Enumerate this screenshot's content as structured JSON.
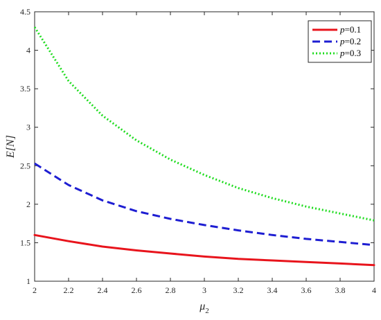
{
  "chart_data": {
    "type": "line",
    "xlabel": "μ",
    "xlabel_sub": "2",
    "ylabel": "E[N]",
    "xlim": [
      2,
      4
    ],
    "ylim": [
      1,
      4.5
    ],
    "x_ticks": [
      "2",
      "2.2",
      "2.4",
      "2.6",
      "2.8",
      "3",
      "3.2",
      "3.4",
      "3.6",
      "3.8",
      "4"
    ],
    "y_ticks": [
      "1",
      "1.5",
      "2",
      "2.5",
      "3",
      "3.5",
      "4",
      "4.5"
    ],
    "x_tick_values": [
      2,
      2.2,
      2.4,
      2.6,
      2.8,
      3,
      3.2,
      3.4,
      3.6,
      3.8,
      4
    ],
    "y_tick_values": [
      1,
      1.5,
      2,
      2.5,
      3,
      3.5,
      4,
      4.5
    ],
    "grid": false,
    "legend_position": "top-right",
    "x": [
      2,
      2.2,
      2.4,
      2.6,
      2.8,
      3,
      3.2,
      3.4,
      3.6,
      3.8,
      4
    ],
    "series": [
      {
        "name": "p=0.1",
        "legend_var": "p",
        "legend_val": "=0.1",
        "color": "#e8141c",
        "dash": "solid",
        "values": [
          1.6,
          1.52,
          1.45,
          1.4,
          1.36,
          1.32,
          1.29,
          1.27,
          1.25,
          1.23,
          1.21
        ]
      },
      {
        "name": "p=0.2",
        "legend_var": "p",
        "legend_val": "=0.2",
        "color": "#1e1ed2",
        "dash": "dashed",
        "values": [
          2.53,
          2.25,
          2.05,
          1.91,
          1.81,
          1.73,
          1.66,
          1.6,
          1.55,
          1.51,
          1.47
        ]
      },
      {
        "name": "p=0.3",
        "legend_var": "p",
        "legend_val": "=0.3",
        "color": "#1fdc1f",
        "dash": "dotted",
        "values": [
          4.3,
          3.6,
          3.15,
          2.83,
          2.58,
          2.38,
          2.21,
          2.08,
          1.97,
          1.88,
          1.79
        ]
      }
    ]
  }
}
